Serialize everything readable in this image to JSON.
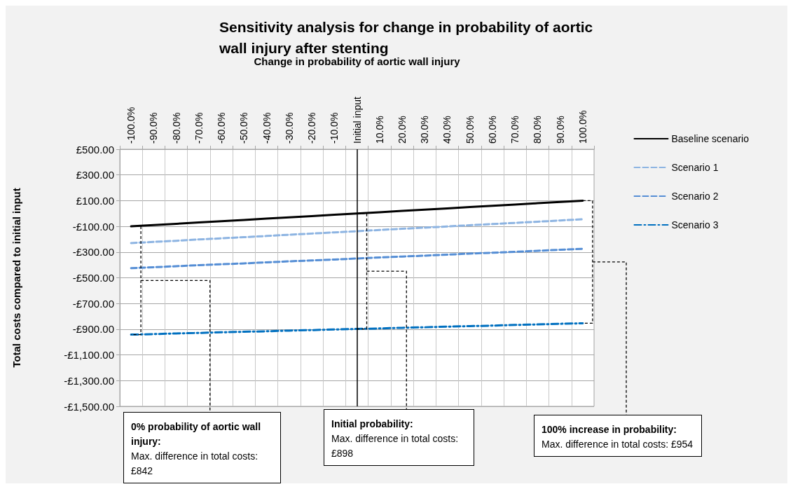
{
  "chart_data": {
    "type": "line",
    "title": "Sensitivity analysis for change in probability of aortic wall injury after stenting",
    "xlabel": "Change in probability of aortic wall injury",
    "ylabel": "Total costs compared to initial input",
    "categories": [
      "-100.0%",
      "-90.0%",
      "-80.0%",
      "-70.0%",
      "-60.0%",
      "-50.0%",
      "-40.0%",
      "-30.0%",
      "-20.0%",
      "-10.0%",
      "Initial input",
      "10.0%",
      "20.0%",
      "30.0%",
      "40.0%",
      "50.0%",
      "60.0%",
      "70.0%",
      "80.0%",
      "90.0%",
      "100.0%"
    ],
    "series": [
      {
        "name": "Baseline scenario",
        "color": "#000000",
        "line_style": "solid",
        "values": [
          -100,
          -90,
          -80,
          -70,
          -60,
          -50,
          -40,
          -30,
          -20,
          -10,
          0,
          10,
          20,
          30,
          40,
          50,
          60,
          70,
          80,
          90,
          100
        ]
      },
      {
        "name": "Scenario 1",
        "color": "#8db4e2",
        "line_style": "dashed",
        "values": [
          -230,
          -221,
          -212,
          -202,
          -193,
          -184,
          -175,
          -165,
          -156,
          -147,
          -138,
          -128,
          -119,
          -110,
          -101,
          -91,
          -82,
          -73,
          -64,
          -54,
          -45
        ]
      },
      {
        "name": "Scenario 2",
        "color": "#558ed5",
        "line_style": "dashed",
        "values": [
          -425,
          -418,
          -410,
          -402,
          -395,
          -388,
          -380,
          -372,
          -365,
          -358,
          -350,
          -342,
          -335,
          -328,
          -320,
          -312,
          -305,
          -298,
          -290,
          -282,
          -275
        ]
      },
      {
        "name": "Scenario 3",
        "color": "#0070c0",
        "line_style": "dotted",
        "values": [
          -942,
          -938,
          -933,
          -929,
          -924,
          -920,
          -916,
          -911,
          -907,
          -902,
          -898,
          -894,
          -889,
          -885,
          -880,
          -876,
          -872,
          -867,
          -863,
          -858,
          -854
        ]
      }
    ],
    "ylim": [
      -1500,
      500
    ],
    "yticks": [
      {
        "value": -1500,
        "label": "-£1,500.00"
      },
      {
        "value": -1300,
        "label": "-£1,300.00"
      },
      {
        "value": -1100,
        "label": "-£1,100.00"
      },
      {
        "value": -900,
        "label": "-£900.00"
      },
      {
        "value": -700,
        "label": "-£700.00"
      },
      {
        "value": -500,
        "label": "-£500.00"
      },
      {
        "value": -300,
        "label": "-£300.00"
      },
      {
        "value": -100,
        "label": "-£100.00"
      },
      {
        "value": 100,
        "label": "£100.00"
      },
      {
        "value": 300,
        "label": "£300.00"
      },
      {
        "value": 500,
        "label": "£500.00"
      }
    ],
    "ref_lines": [
      {
        "axis": "x",
        "value": "Initial input",
        "color": "#000000"
      }
    ],
    "annotations": [
      "0% probability of aortic wall injury:\nMax. difference in total costs: £842",
      "Initial probability:\nMax. difference in total costs: £898",
      "100% increase in probability:\nMax. difference in total costs: £954"
    ],
    "grid": true,
    "legend": "right",
    "marker": "none"
  }
}
